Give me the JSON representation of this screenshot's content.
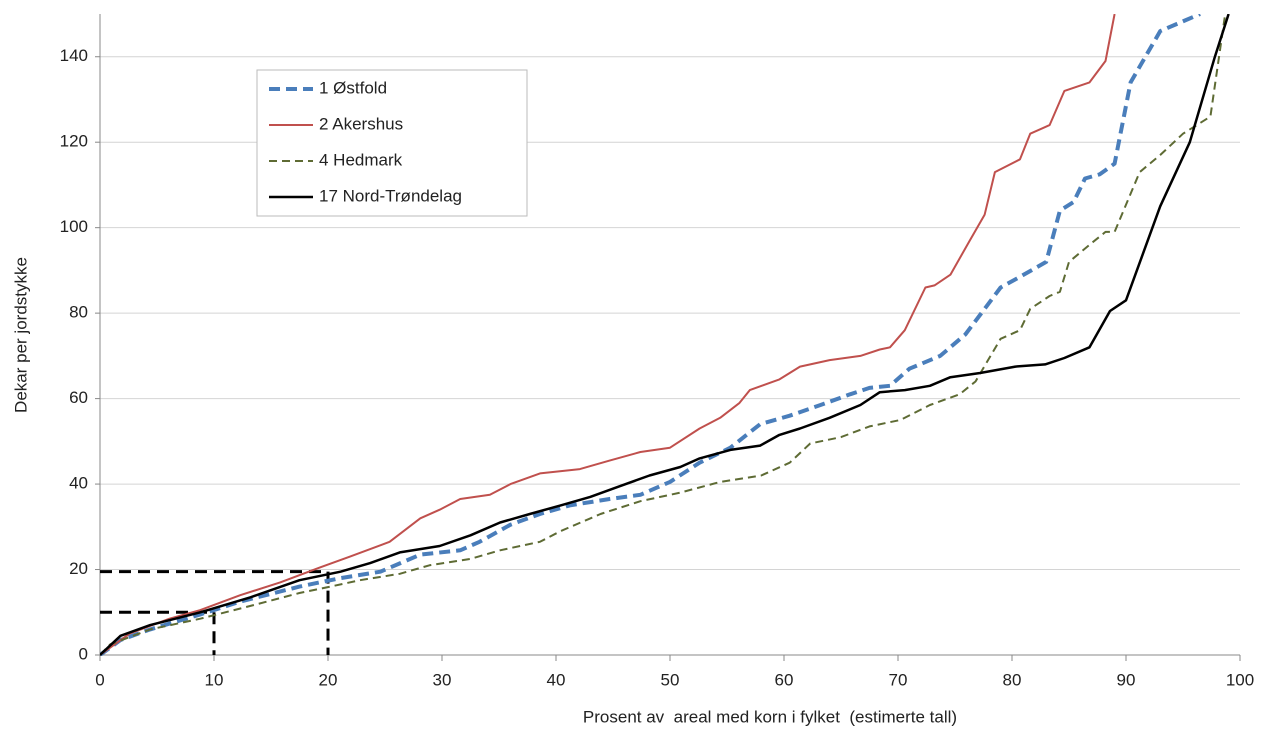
{
  "chart_data": {
    "type": "line",
    "xlabel": "Prosent av  areal med korn i fylket  (estimerte tall)",
    "ylabel": "Dekar per jordstykke",
    "xlim": [
      0,
      100
    ],
    "xticks": [
      0,
      10,
      20,
      30,
      40,
      50,
      60,
      70,
      80,
      90,
      100
    ],
    "ylim": [
      0,
      150
    ],
    "yticks": [
      0,
      20,
      40,
      60,
      80,
      100,
      120,
      140
    ],
    "grid": true,
    "legend": "upper-left",
    "series": [
      {
        "name": "1 Østfold",
        "color": "#4a7ebb",
        "style": "dashed",
        "x": [
          0,
          1.8,
          4.4,
          8.8,
          12.3,
          17.5,
          21.1,
          24.6,
          28.1,
          31.6,
          33.3,
          36,
          38.6,
          41.2,
          44.7,
          47.4,
          50,
          52.6,
          55.3,
          57.9,
          60.5,
          63.2,
          65.8,
          67.5,
          69.3,
          71,
          73.7,
          75.9,
          77.6,
          79,
          80.7,
          83,
          84.2,
          85.4,
          86.4,
          87.7,
          89,
          90.4,
          93,
          96.5
        ],
        "values": [
          0,
          3.5,
          6,
          9.5,
          12.5,
          16,
          18,
          19.5,
          23.5,
          24.5,
          26.5,
          30.5,
          33,
          35,
          36.5,
          37.5,
          40.5,
          45,
          48.5,
          54,
          56,
          58.5,
          61,
          62.5,
          63,
          67,
          70,
          75,
          81,
          86,
          88.5,
          92,
          104,
          106,
          111.5,
          112.5,
          115,
          134,
          146,
          150
        ]
      },
      {
        "name": "2 Akershus",
        "color": "#c0504d",
        "style": "solid",
        "x": [
          0,
          2.6,
          6.1,
          8.8,
          12.3,
          15.8,
          19.3,
          21.9,
          25.4,
          28.1,
          29.8,
          31.6,
          34.2,
          36,
          38.6,
          42.1,
          44.7,
          47.4,
          50,
          52.6,
          54.4,
          56.1,
          57,
          59.6,
          61.4,
          64,
          66.7,
          68.4,
          69.3,
          70.6,
          72.4,
          73.2,
          74.6,
          76.3,
          77.6,
          78.5,
          80.7,
          81.6,
          83.3,
          84.6,
          86.8,
          88.2,
          89
        ],
        "values": [
          0,
          5,
          8.5,
          10.5,
          14,
          17,
          20.5,
          23,
          26.5,
          32,
          34,
          36.5,
          37.5,
          40,
          42.5,
          43.5,
          45.5,
          47.5,
          48.5,
          53,
          55.5,
          59,
          62,
          64.5,
          67.5,
          69,
          70,
          71.5,
          72,
          76,
          86,
          86.5,
          89,
          97,
          103,
          113,
          116,
          122,
          124,
          132,
          134,
          139,
          150
        ]
      },
      {
        "name": "4 Hedmark",
        "color": "#5e6b34",
        "style": "dashed",
        "x": [
          0,
          0.9,
          4.4,
          8.8,
          13.2,
          17.5,
          20.2,
          22.8,
          26.3,
          28.9,
          32.5,
          35.1,
          38.6,
          40.4,
          43.9,
          47.4,
          50.9,
          54.4,
          58,
          60.5,
          62.3,
          65,
          67.5,
          70.2,
          72.8,
          75.4,
          76.8,
          79,
          80.7,
          81.6,
          83.3,
          84.2,
          85,
          86.8,
          88.2,
          89,
          91.2,
          93,
          95,
          97.4,
          98.7
        ],
        "values": [
          0,
          2.5,
          6,
          8.5,
          11.5,
          14.5,
          16,
          17.5,
          19,
          21,
          22.5,
          24.5,
          26.5,
          29,
          33,
          36,
          38,
          40.5,
          42,
          45,
          49.5,
          51,
          53.5,
          55,
          58.5,
          61,
          64,
          74,
          76,
          81,
          84,
          85,
          92,
          96,
          99,
          99,
          113,
          117,
          122,
          126,
          150
        ]
      },
      {
        "name": "17 Nord-Trøndelag",
        "color": "#000000",
        "style": "solid",
        "x": [
          0,
          1.8,
          4.4,
          8.8,
          13.2,
          17.5,
          21.1,
          23.7,
          26.3,
          29.8,
          32.5,
          35.1,
          37.7,
          40.4,
          43,
          45.6,
          48.2,
          50.9,
          52.6,
          55.3,
          57.9,
          59.6,
          61.4,
          64,
          66.7,
          68.4,
          70.6,
          72.8,
          74.6,
          77.2,
          80.3,
          82.9,
          84.6,
          86.8,
          88.6,
          90,
          93,
          95.6,
          97.8,
          99
        ],
        "values": [
          0,
          4.5,
          7,
          10,
          13.5,
          17.5,
          19.5,
          21.5,
          24,
          25.5,
          28,
          31,
          33,
          35,
          37,
          39.5,
          42,
          44,
          46,
          48,
          49,
          51.5,
          53,
          55.5,
          58.5,
          61.5,
          62,
          63,
          65,
          66,
          67.5,
          68,
          69.5,
          72,
          80.5,
          83,
          105,
          120,
          140,
          150
        ]
      }
    ],
    "reference_lines": [
      {
        "x": 10,
        "y": 10
      },
      {
        "x": 20,
        "y": 19.5
      }
    ]
  }
}
